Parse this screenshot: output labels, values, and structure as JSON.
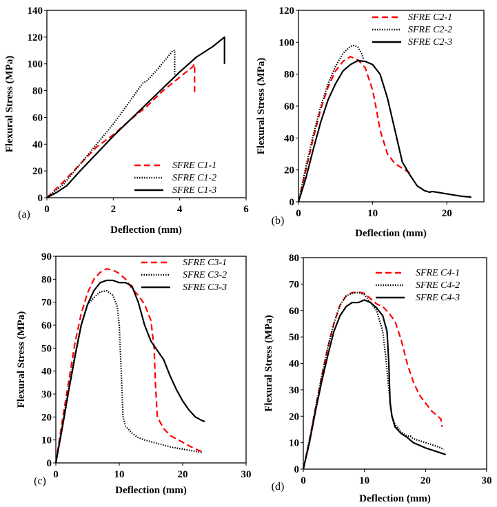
{
  "chart_data": [
    {
      "type": "line",
      "panel_label": "(a)",
      "xlabel": "Deflection (mm)",
      "ylabel": "Flexural Stress (MPa)",
      "xlim": [
        0,
        6
      ],
      "ylim": [
        0,
        140
      ],
      "xticks": [
        0,
        2,
        4,
        6
      ],
      "yticks": [
        0,
        20,
        40,
        60,
        80,
        100,
        120,
        140
      ],
      "legend": "bottom-right",
      "series": [
        {
          "name": "SFRE C1-1",
          "style": "dashed",
          "color": "#ff0000",
          "points": [
            [
              0,
              0
            ],
            [
              0.5,
              12
            ],
            [
              1,
              25
            ],
            [
              1.5,
              38
            ],
            [
              2,
              47
            ],
            [
              2.5,
              58
            ],
            [
              3,
              68
            ],
            [
              3.5,
              80
            ],
            [
              4,
              90
            ],
            [
              4.4,
              98
            ],
            [
              4.45,
              100
            ],
            [
              4.45,
              78
            ]
          ]
        },
        {
          "name": "SFRE C1-2",
          "style": "dotted",
          "color": "#000000",
          "points": [
            [
              0,
              0
            ],
            [
              0.5,
              10
            ],
            [
              1,
              25
            ],
            [
              1.4,
              37
            ],
            [
              2,
              55
            ],
            [
              2.5,
              72
            ],
            [
              2.9,
              86
            ],
            [
              3.0,
              87
            ],
            [
              3.3,
              95
            ],
            [
              3.8,
              110
            ],
            [
              3.85,
              110
            ],
            [
              3.85,
              92
            ]
          ]
        },
        {
          "name": "SFRE C1-3",
          "style": "solid",
          "color": "#000000",
          "points": [
            [
              0,
              0
            ],
            [
              0.3,
              4
            ],
            [
              0.6,
              9
            ],
            [
              1,
              20
            ],
            [
              1.5,
              33
            ],
            [
              2,
              46
            ],
            [
              2.5,
              58
            ],
            [
              3,
              70
            ],
            [
              3.5,
              82
            ],
            [
              4,
              94
            ],
            [
              4.5,
              105
            ],
            [
              5,
              113
            ],
            [
              5.35,
              120
            ],
            [
              5.35,
              100
            ]
          ]
        }
      ]
    },
    {
      "type": "line",
      "panel_label": "(b)",
      "xlabel": "Deflection (mm)",
      "ylabel": "Flexural Stress (MPa)",
      "xlim": [
        0,
        25
      ],
      "ylim": [
        0,
        120
      ],
      "xticks": [
        0,
        10,
        20
      ],
      "yticks": [
        0,
        20,
        40,
        60,
        80,
        100,
        120
      ],
      "legend": "top-right",
      "series": [
        {
          "name": "SFRE C2-1",
          "style": "dashed",
          "color": "#ff0000",
          "points": [
            [
              0,
              0
            ],
            [
              1,
              20
            ],
            [
              2,
              40
            ],
            [
              3,
              58
            ],
            [
              4,
              72
            ],
            [
              5,
              82
            ],
            [
              6,
              88
            ],
            [
              7,
              91
            ],
            [
              8,
              89
            ],
            [
              9,
              84
            ],
            [
              10,
              70
            ],
            [
              10.5,
              58
            ],
            [
              11,
              45
            ],
            [
              12,
              30
            ],
            [
              13,
              24
            ],
            [
              14,
              21
            ],
            [
              15,
              18
            ]
          ]
        },
        {
          "name": "SFRE C2-2",
          "style": "dotted",
          "color": "#000000",
          "points": [
            [
              0,
              0
            ],
            [
              1,
              22
            ],
            [
              2,
              42
            ],
            [
              3,
              60
            ],
            [
              4,
              74
            ],
            [
              5,
              85
            ],
            [
              6,
              93
            ],
            [
              7,
              97.5
            ],
            [
              7.5,
              98
            ],
            [
              8,
              97
            ],
            [
              8.5,
              93
            ],
            [
              8.8,
              89
            ]
          ]
        },
        {
          "name": "SFRE C2-3",
          "style": "solid",
          "color": "#000000",
          "points": [
            [
              0,
              0
            ],
            [
              1,
              15
            ],
            [
              2,
              33
            ],
            [
              3,
              50
            ],
            [
              4,
              64
            ],
            [
              5,
              74
            ],
            [
              6,
              82
            ],
            [
              7,
              86
            ],
            [
              8,
              88.5
            ],
            [
              9,
              88
            ],
            [
              10,
              86
            ],
            [
              11,
              80
            ],
            [
              12,
              65
            ],
            [
              13,
              45
            ],
            [
              14,
              25
            ],
            [
              15,
              17
            ],
            [
              16,
              10
            ],
            [
              17,
              7
            ],
            [
              17.7,
              6
            ],
            [
              18,
              6.5
            ],
            [
              20,
              5
            ],
            [
              22,
              3.5
            ],
            [
              23.3,
              3
            ]
          ]
        }
      ]
    },
    {
      "type": "line",
      "panel_label": "(c)",
      "xlabel": "Deflection (mm)",
      "ylabel": "Flexural Stress (MPa)",
      "xlim": [
        0,
        30
      ],
      "ylim": [
        0,
        90
      ],
      "xticks": [
        0,
        10,
        20,
        30
      ],
      "yticks": [
        0,
        10,
        20,
        30,
        40,
        50,
        60,
        70,
        80,
        90
      ],
      "legend": "top-right",
      "series": [
        {
          "name": "SFRE C3-1",
          "style": "dashed",
          "color": "#ff0000",
          "points": [
            [
              0,
              0
            ],
            [
              1,
              18
            ],
            [
              2,
              35
            ],
            [
              3,
              52
            ],
            [
              4,
              65
            ],
            [
              5,
              74
            ],
            [
              6,
              80
            ],
            [
              7,
              83
            ],
            [
              8,
              84.5
            ],
            [
              9,
              84
            ],
            [
              10,
              82.5
            ],
            [
              11,
              80
            ],
            [
              12,
              76
            ],
            [
              13,
              73
            ],
            [
              14,
              69
            ],
            [
              15,
              62
            ],
            [
              15.5,
              50
            ],
            [
              15.7,
              35
            ],
            [
              16,
              20
            ],
            [
              17,
              15
            ],
            [
              18,
              12
            ],
            [
              20,
              9
            ],
            [
              22,
              6
            ],
            [
              23,
              5
            ]
          ]
        },
        {
          "name": "SFRE C3-2",
          "style": "dotted",
          "color": "#000000",
          "points": [
            [
              0,
              0
            ],
            [
              1,
              16
            ],
            [
              2,
              32
            ],
            [
              3,
              47
            ],
            [
              4,
              60
            ],
            [
              5,
              69
            ],
            [
              6,
              72
            ],
            [
              7,
              74.5
            ],
            [
              8,
              75
            ],
            [
              9,
              73
            ],
            [
              9.7,
              68
            ],
            [
              10,
              60
            ],
            [
              10.3,
              40
            ],
            [
              10.6,
              20
            ],
            [
              11,
              16
            ],
            [
              12,
              13
            ],
            [
              13,
              11
            ],
            [
              14,
              10
            ],
            [
              16,
              8.5
            ],
            [
              18,
              7
            ],
            [
              20,
              6
            ],
            [
              22,
              5
            ],
            [
              23,
              4.5
            ]
          ]
        },
        {
          "name": "SFRE C3-3",
          "style": "solid",
          "color": "#000000",
          "points": [
            [
              0,
              0
            ],
            [
              1,
              15
            ],
            [
              2,
              31
            ],
            [
              3,
              46
            ],
            [
              4,
              60
            ],
            [
              5,
              69
            ],
            [
              6,
              75
            ],
            [
              7,
              78.5
            ],
            [
              8,
              79.5
            ],
            [
              9,
              79.5
            ],
            [
              10,
              78.5
            ],
            [
              11,
              78.5
            ],
            [
              12,
              77
            ],
            [
              13,
              70
            ],
            [
              14,
              60
            ],
            [
              15,
              53
            ],
            [
              16,
              49
            ],
            [
              17,
              45
            ],
            [
              18,
              38
            ],
            [
              19,
              32
            ],
            [
              20,
              27
            ],
            [
              21,
              23
            ],
            [
              22,
              20
            ],
            [
              23,
              18.5
            ],
            [
              23.5,
              18
            ]
          ]
        }
      ]
    },
    {
      "type": "line",
      "panel_label": "(d)",
      "xlabel": "Deflection (mm)",
      "ylabel": "Flexural Stress (MPa)",
      "xlim": [
        0,
        30
      ],
      "ylim": [
        0,
        80
      ],
      "xticks": [
        0,
        10,
        20,
        30
      ],
      "yticks": [
        0,
        10,
        20,
        30,
        40,
        50,
        60,
        70,
        80
      ],
      "legend": "top-right",
      "series": [
        {
          "name": "SFRE C4-1",
          "style": "dashed",
          "color": "#ff0000",
          "points": [
            [
              0,
              0
            ],
            [
              1,
              11
            ],
            [
              2,
              23
            ],
            [
              3,
              35
            ],
            [
              4,
              46
            ],
            [
              5,
              55
            ],
            [
              6,
              62
            ],
            [
              7,
              65.5
            ],
            [
              8,
              66.8
            ],
            [
              9,
              67
            ],
            [
              10,
              66.5
            ],
            [
              11,
              64.5
            ],
            [
              12,
              62.5
            ],
            [
              13,
              61.5
            ],
            [
              14,
              59
            ],
            [
              15,
              56
            ],
            [
              16,
              49
            ],
            [
              17,
              40
            ],
            [
              18,
              33
            ],
            [
              19,
              28
            ],
            [
              20,
              25
            ],
            [
              21,
              22
            ],
            [
              22,
              20
            ],
            [
              22.5,
              19
            ],
            [
              22.7,
              16
            ]
          ]
        },
        {
          "name": "SFRE C4-2",
          "style": "dotted",
          "color": "#000000",
          "points": [
            [
              0,
              0
            ],
            [
              1,
              11
            ],
            [
              2,
              23
            ],
            [
              3,
              35
            ],
            [
              4,
              46
            ],
            [
              5,
              55
            ],
            [
              6,
              62
            ],
            [
              7,
              65.5
            ],
            [
              8,
              66.5
            ],
            [
              9,
              66.8
            ],
            [
              10,
              66
            ],
            [
              11,
              63
            ],
            [
              12,
              60
            ],
            [
              13,
              52
            ],
            [
              13.6,
              40
            ],
            [
              14,
              30
            ],
            [
              14.5,
              20
            ],
            [
              15,
              17
            ],
            [
              16,
              14
            ],
            [
              17,
              12.5
            ],
            [
              17.5,
              12.5
            ],
            [
              18,
              11.5
            ],
            [
              20,
              10
            ],
            [
              22,
              8.5
            ],
            [
              23,
              7.5
            ]
          ]
        },
        {
          "name": "SFRE C4-3",
          "style": "solid",
          "color": "#000000",
          "points": [
            [
              0,
              0
            ],
            [
              1,
              10
            ],
            [
              2,
              22
            ],
            [
              3,
              33
            ],
            [
              4,
              43
            ],
            [
              5,
              52
            ],
            [
              6,
              58
            ],
            [
              7,
              61.5
            ],
            [
              8,
              63
            ],
            [
              9,
              63
            ],
            [
              10,
              64
            ],
            [
              11,
              63
            ],
            [
              12,
              61
            ],
            [
              13,
              58
            ],
            [
              13.7,
              52
            ],
            [
              14,
              40
            ],
            [
              14.2,
              25
            ],
            [
              14.5,
              20
            ],
            [
              15,
              16
            ],
            [
              16,
              13.5
            ],
            [
              17,
              12
            ],
            [
              18,
              10
            ],
            [
              20,
              8
            ],
            [
              22,
              6.5
            ],
            [
              23.3,
              5.5
            ]
          ]
        }
      ]
    }
  ]
}
